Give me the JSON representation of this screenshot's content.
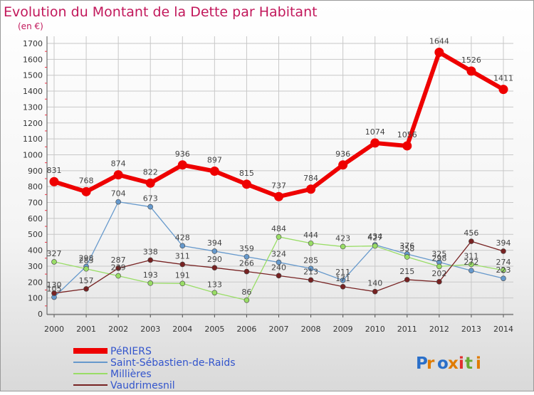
{
  "chart_data": {
    "type": "line",
    "title": "Evolution du Montant de la Dette par Habitant",
    "subtitle": "(en €)",
    "xlabel": "",
    "ylabel": "",
    "ylim": [
      0,
      1700
    ],
    "ytick_step": 100,
    "grid": true,
    "categories": [
      "2000",
      "2001",
      "2002",
      "2003",
      "2004",
      "2005",
      "2006",
      "2007",
      "2008",
      "2009",
      "2010",
      "2011",
      "2012",
      "2013",
      "2014"
    ],
    "series": [
      {
        "name": "PéRIERS",
        "color": "#ee0000",
        "values": [
          831,
          768,
          874,
          822,
          936,
          897,
          815,
          737,
          784,
          936,
          1074,
          1056,
          1644,
          1526,
          1411
        ]
      },
      {
        "name": "Saint-Sébastien-de-Raids",
        "color": "#6699cc",
        "values": [
          105,
          298,
          704,
          673,
          428,
          394,
          359,
          324,
          285,
          211,
          434,
          376,
          325,
          272,
          223
        ]
      },
      {
        "name": "Millières",
        "color": "#99dd66",
        "values": [
          327,
          283,
          239,
          193,
          191,
          133,
          86,
          484,
          444,
          423,
          427,
          358,
          298,
          311,
          274
        ]
      },
      {
        "name": "Vaudrimesnil",
        "color": "#772222",
        "values": [
          130,
          157,
          287,
          338,
          311,
          290,
          266,
          240,
          213,
          171,
          140,
          215,
          202,
          456,
          394
        ]
      }
    ],
    "legend_position": "bottom-left"
  },
  "brand": {
    "text": "Proxiti"
  }
}
